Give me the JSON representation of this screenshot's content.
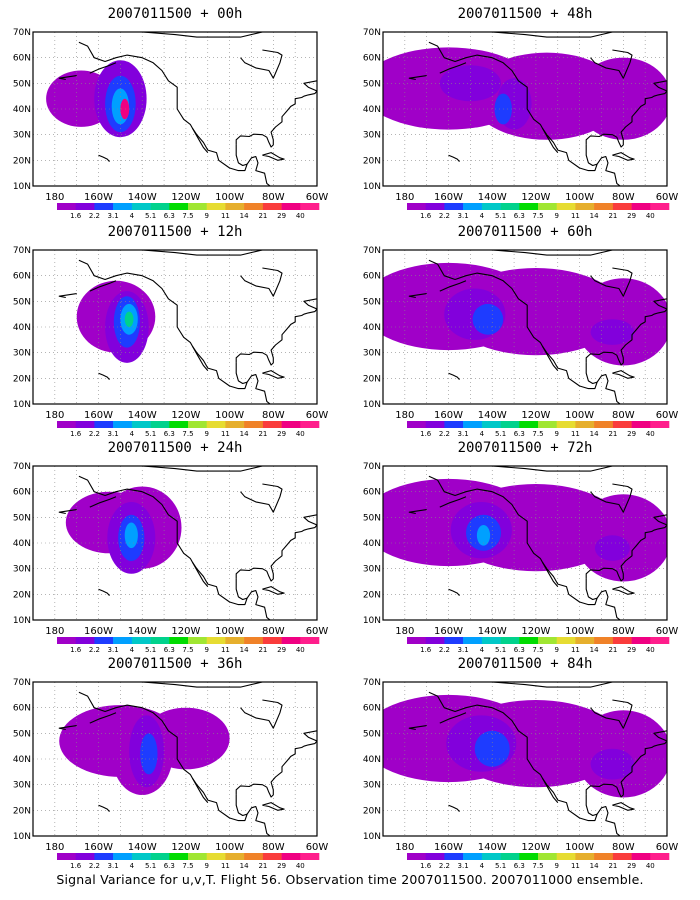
{
  "figure": {
    "caption": "Signal Variance for u,v,T. Flight 56. Observation time 2007011500. 2007011000 ensemble."
  },
  "map": {
    "lon_range": [
      -190,
      -60
    ],
    "lat_range": [
      10,
      70
    ],
    "lat_ticks": [
      "10N",
      "20N",
      "30N",
      "40N",
      "50N",
      "60N",
      "70N"
    ],
    "lon_ticks": [
      "180",
      "160W",
      "140W",
      "120W",
      "100W",
      "80W",
      "60W"
    ],
    "grid": "dotted"
  },
  "colorbar": {
    "labels": [
      "1.6",
      "2.2",
      "3.1",
      "4",
      "5.1",
      "6.3",
      "7.5",
      "9",
      "11",
      "14",
      "21",
      "29",
      "40"
    ],
    "colors": [
      "#a000c8",
      "#8200dc",
      "#1e3cff",
      "#00a0ff",
      "#00c8c8",
      "#00d28c",
      "#00dc00",
      "#a0e632",
      "#e6dc32",
      "#e6af2d",
      "#f08228",
      "#fa3c3c",
      "#f00082",
      "#ff1e8c"
    ]
  },
  "panels": [
    {
      "title": "2007011500 + 00h",
      "lead": "00h"
    },
    {
      "title": "2007011500 + 48h",
      "lead": "48h"
    },
    {
      "title": "2007011500 + 12h",
      "lead": "12h"
    },
    {
      "title": "2007011500 + 60h",
      "lead": "60h"
    },
    {
      "title": "2007011500 + 24h",
      "lead": "24h"
    },
    {
      "title": "2007011500 + 72h",
      "lead": "72h"
    },
    {
      "title": "2007011500 + 36h",
      "lead": "36h"
    },
    {
      "title": "2007011500 + 84h",
      "lead": "84h"
    }
  ]
}
